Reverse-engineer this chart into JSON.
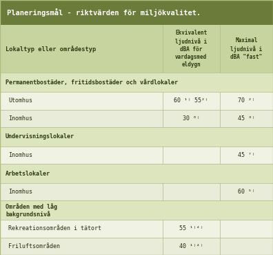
{
  "title": "Planeringsmål - riktvärden för miljökvalitet.",
  "title_bg": "#6b7c3a",
  "title_fg": "#ffffff",
  "header_bg": "#c8d4a0",
  "header_fg": "#2d3a10",
  "row_bg_light": "#e8ecd8",
  "row_bg_white": "#f0f2e4",
  "section_bg": "#dde5be",
  "border_color": "#b0bb80",
  "col1_header": "Lokaltyp eller områdestyp",
  "col2_header": "Ekvivalent\nljudnivå i\ndBA för\nvardagsmed\neldygn",
  "col3_header": "Maximal\nljudnivå i\ndBA \"fast\"",
  "sections": [
    {
      "label": "Permanentbostäder, fritidsbostäder och vårdlokaler",
      "bold": true,
      "rows": [
        {
          "col1": "Utomhus",
          "col2": "60 ¹⁾ 55²⁾",
          "col3": "70 ²⁾"
        },
        {
          "col1": "Inomhus",
          "col2": "30 ⁶⁾",
          "col3": "45 ³⁾"
        }
      ]
    },
    {
      "label": "Undervisningslokaler",
      "bold": true,
      "rows": [
        {
          "col1": "Inomhus",
          "col2": "",
          "col3": "45 ⁷⁾"
        }
      ]
    },
    {
      "label": "Arbetslokaler",
      "bold": true,
      "rows": [
        {
          "col1": "Inomhus",
          "col2": "",
          "col3": "60 ⁵⁾"
        }
      ]
    },
    {
      "label": "Områden med låg\nbakgrundsnivå",
      "bold": true,
      "rows": [
        {
          "col1": "Rekreationsområden i tätort",
          "col2": "55 ¹⁾⁴⁾",
          "col3": ""
        },
        {
          "col1": "Friluftsområden",
          "col2": "40 ¹⁾⁴⁾",
          "col3": ""
        }
      ]
    }
  ]
}
